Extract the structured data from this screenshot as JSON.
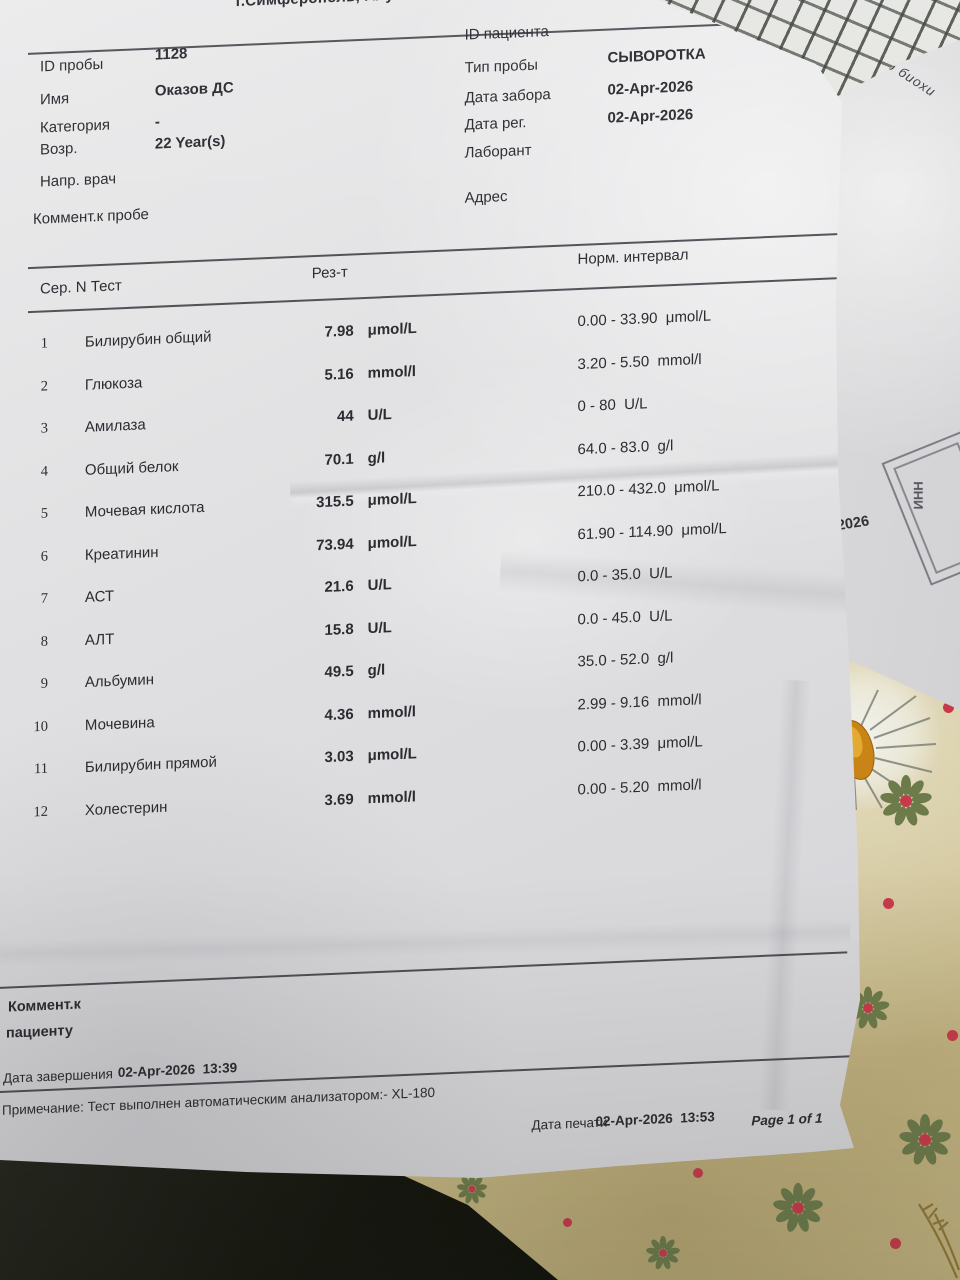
{
  "report": {
    "clinic_header": "г.Симферополь, Алуштинское шоссе,",
    "info": {
      "left": [
        {
          "label": "ID пробы",
          "value": "1128"
        },
        {
          "label": "Имя",
          "value": "Оказов ДС"
        },
        {
          "label": "Категория",
          "value": "-"
        },
        {
          "label": "Возр.",
          "value": "22 Year(s)"
        },
        {
          "label": "Напр. врач",
          "value": ""
        },
        {
          "label": "Коммент.к пробе",
          "value": ""
        }
      ],
      "right": [
        {
          "label": "ID пациента",
          "value": ""
        },
        {
          "label": "Тип пробы",
          "value": "СЫВОРОТКА"
        },
        {
          "label": "Дата забора",
          "value": "02-Apr-2026"
        },
        {
          "label": "Дата рег.",
          "value": "02-Apr-2026"
        },
        {
          "label": "Лаборант",
          "value": ""
        },
        {
          "label": "Адрес",
          "value": ""
        }
      ]
    },
    "table": {
      "headers": {
        "serial_test": "Сер. N Тест",
        "result": "Рез-т",
        "norm": "Норм. интервал"
      },
      "rows": [
        {
          "n": "1",
          "test": "Билирубин общий",
          "value": "7.98",
          "unit": "μmol/L",
          "norm": "0.00 - 33.90  μmol/L"
        },
        {
          "n": "2",
          "test": "Глюкоза",
          "value": "5.16",
          "unit": "mmol/l",
          "norm": "3.20 - 5.50  mmol/l"
        },
        {
          "n": "3",
          "test": "Амилаза",
          "value": "44",
          "unit": "U/L",
          "norm": "0 - 80  U/L"
        },
        {
          "n": "4",
          "test": "Общий белок",
          "value": "70.1",
          "unit": "g/l",
          "norm": "64.0 - 83.0  g/l"
        },
        {
          "n": "5",
          "test": "Мочевая кислота",
          "value": "315.5",
          "unit": "μmol/L",
          "norm": "210.0 - 432.0  μmol/L"
        },
        {
          "n": "6",
          "test": "Креатинин",
          "value": "73.94",
          "unit": "μmol/L",
          "norm": "61.90 - 114.90  μmol/L"
        },
        {
          "n": "7",
          "test": "АСТ",
          "value": "21.6",
          "unit": "U/L",
          "norm": "0.0 - 35.0  U/L"
        },
        {
          "n": "8",
          "test": "АЛТ",
          "value": "15.8",
          "unit": "U/L",
          "norm": "0.0 - 45.0  U/L"
        },
        {
          "n": "9",
          "test": "Альбумин",
          "value": "49.5",
          "unit": "g/l",
          "norm": "35.0 - 52.0  g/l"
        },
        {
          "n": "10",
          "test": "Мочевина",
          "value": "4.36",
          "unit": "mmol/l",
          "norm": "2.99 - 9.16  mmol/l"
        },
        {
          "n": "11",
          "test": "Билирубин прямой",
          "value": "3.03",
          "unit": "μmol/L",
          "norm": "0.00 - 3.39  μmol/L"
        },
        {
          "n": "12",
          "test": "Холестерин",
          "value": "3.69",
          "unit": "mmol/l",
          "norm": "0.00 - 5.20  mmol/l"
        }
      ]
    },
    "footer": {
      "comment_line1": "Коммент.к",
      "comment_line2": "пациенту",
      "completion_label": "Дата завершения",
      "completion_value": "02-Apr-2026  13:39",
      "note": "Примечание: Тест выполнен автоматическим анализатором:- XL-180",
      "print_label": "Дата печати",
      "print_value": "02-Apr-2026  13:53",
      "page": "Page 1 of 1"
    }
  },
  "background_papers": {
    "diagonal_text": "лизатор биохи",
    "year_fragment": ".2026",
    "stamp_text": "ИНН"
  },
  "colors": {
    "tablecloth": "#cfc293",
    "flower_petal": "#6d7b4b",
    "flower_center": "#c63b4b",
    "daisy_center": "#d89a25",
    "paper": "#dfdfe1",
    "ink": "#2b2b31"
  }
}
